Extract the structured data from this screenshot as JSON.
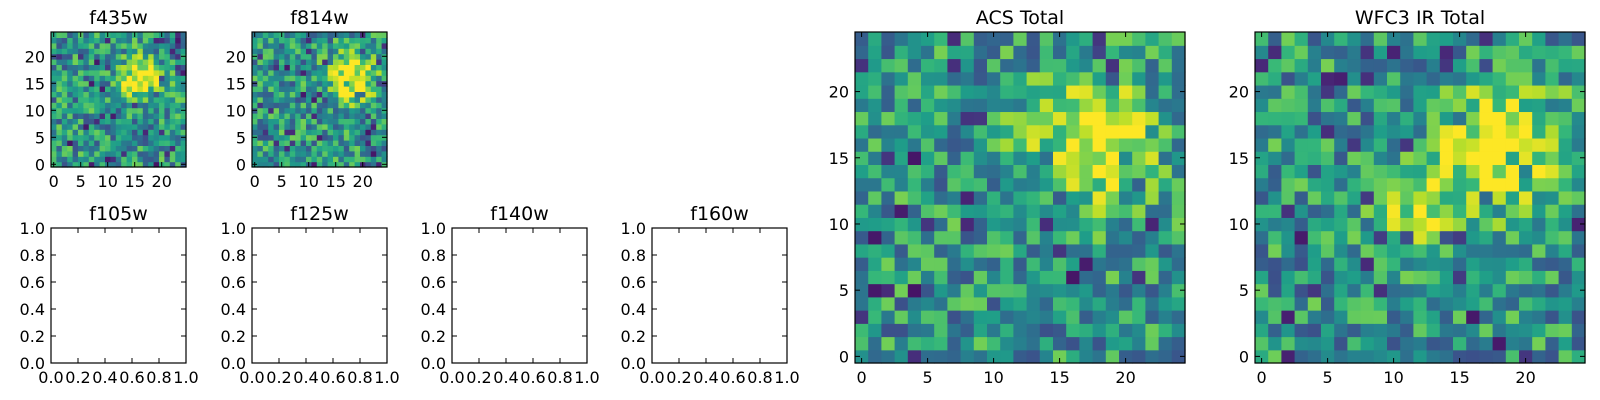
{
  "chart_data": [
    {
      "type": "heatmap",
      "title": "f435w",
      "xticks": [
        "0",
        "5",
        "10",
        "15",
        "20"
      ],
      "yticks": [
        "0",
        "5",
        "10",
        "15",
        "20"
      ],
      "xlim": [
        -0.5,
        24.5
      ],
      "ylim": [
        -0.5,
        24.5
      ],
      "grid_size": [
        25,
        25
      ],
      "colormap": "viridis",
      "bright_source": {
        "x": 16,
        "y": 16,
        "radius": 2.5
      }
    },
    {
      "type": "heatmap",
      "title": "f814w",
      "xticks": [
        "0",
        "5",
        "10",
        "15",
        "20"
      ],
      "yticks": [
        "0",
        "5",
        "10",
        "15",
        "20"
      ],
      "xlim": [
        -0.5,
        24.5
      ],
      "ylim": [
        -0.5,
        24.5
      ],
      "grid_size": [
        25,
        25
      ],
      "colormap": "viridis",
      "bright_source": {
        "x": 18,
        "y": 16,
        "radius": 3
      }
    },
    {
      "type": "heatmap",
      "title": "f105w",
      "xticks": [
        "0.0",
        "0.2",
        "0.4",
        "0.6",
        "0.8",
        "1.0"
      ],
      "yticks": [
        "0.0",
        "0.2",
        "0.4",
        "0.6",
        "0.8",
        "1.0"
      ],
      "xlim": [
        0,
        1
      ],
      "ylim": [
        0,
        1
      ],
      "empty": true
    },
    {
      "type": "heatmap",
      "title": "f125w",
      "xticks": [
        "0.0",
        "0.2",
        "0.4",
        "0.6",
        "0.8",
        "1.0"
      ],
      "yticks": [
        "0.0",
        "0.2",
        "0.4",
        "0.6",
        "0.8",
        "1.0"
      ],
      "xlim": [
        0,
        1
      ],
      "ylim": [
        0,
        1
      ],
      "empty": true
    },
    {
      "type": "heatmap",
      "title": "f140w",
      "xticks": [
        "0.0",
        "0.2",
        "0.4",
        "0.6",
        "0.8",
        "1.0"
      ],
      "yticks": [
        "0.0",
        "0.2",
        "0.4",
        "0.6",
        "0.8",
        "1.0"
      ],
      "xlim": [
        0,
        1
      ],
      "ylim": [
        0,
        1
      ],
      "empty": true
    },
    {
      "type": "heatmap",
      "title": "f160w",
      "xticks": [
        "0.0",
        "0.2",
        "0.4",
        "0.6",
        "0.8",
        "1.0"
      ],
      "yticks": [
        "0.0",
        "0.2",
        "0.4",
        "0.6",
        "0.8",
        "1.0"
      ],
      "xlim": [
        0,
        1
      ],
      "ylim": [
        0,
        1
      ],
      "empty": true
    },
    {
      "type": "heatmap",
      "title": "ACS Total",
      "xticks": [
        "0",
        "5",
        "10",
        "15",
        "20"
      ],
      "yticks": [
        "0",
        "5",
        "10",
        "15",
        "20"
      ],
      "xlim": [
        -0.5,
        24.5
      ],
      "ylim": [
        -0.5,
        24.5
      ],
      "grid_size": [
        25,
        25
      ],
      "colormap": "viridis",
      "bright_source": {
        "x": 17.5,
        "y": 16,
        "radius": 3.2
      }
    },
    {
      "type": "heatmap",
      "title": "WFC3 IR Total",
      "xticks": [
        "0",
        "5",
        "10",
        "15",
        "20"
      ],
      "yticks": [
        "0",
        "5",
        "10",
        "15",
        "20"
      ],
      "xlim": [
        -0.5,
        24.5
      ],
      "ylim": [
        -0.5,
        24.5
      ],
      "grid_size": [
        25,
        25
      ],
      "colormap": "viridis",
      "bright_source": {
        "x": 18,
        "y": 16,
        "radius": 3.2
      },
      "secondary_source": {
        "x": 12,
        "y": 11.5,
        "radius": 2
      }
    }
  ]
}
